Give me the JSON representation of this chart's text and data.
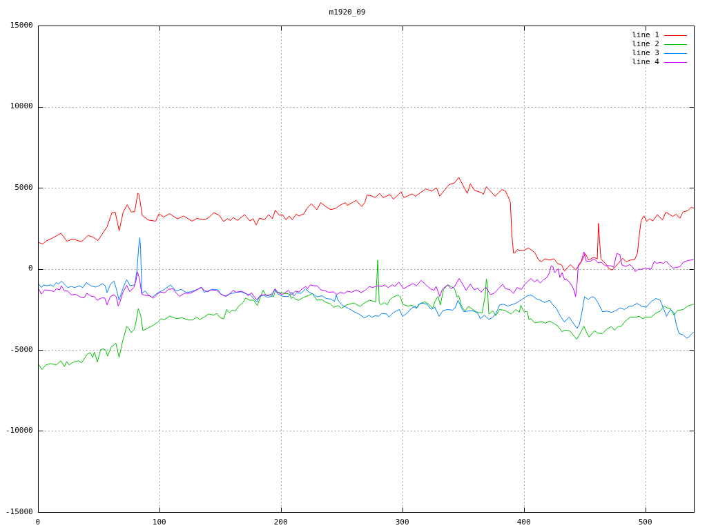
{
  "chart_data": {
    "type": "line",
    "title": "m1920_09",
    "xlim": [
      0,
      540
    ],
    "xticks": [
      0,
      100,
      200,
      300,
      400,
      500
    ],
    "ylim": [
      -15000,
      15000
    ],
    "yticks": [
      -15000,
      -10000,
      -5000,
      0,
      5000,
      10000,
      15000
    ],
    "grid": true,
    "legend": "top right",
    "series": [
      {
        "name": "line 1",
        "color": "#ff0000",
        "x": [
          1,
          4,
          7,
          11,
          19,
          24,
          28.5,
          36,
          41.5,
          45.6,
          49.4,
          57,
          61,
          63.7,
          67,
          70.3,
          73.6,
          77,
          79.8,
          82.3,
          83.3,
          86,
          91,
          97,
          99.8,
          103.6,
          108.4,
          115,
          120,
          127,
          131,
          137,
          140.7,
          144.9,
          149.3,
          153,
          156,
          158.5,
          160.7,
          164.5,
          170.2,
          174.6,
          177.2,
          179.7,
          182.5,
          186.4,
          190.1,
          193,
          195.5,
          198.7,
          201.5,
          204.4,
          206.9,
          209.5,
          212.6,
          214.9,
          219.2,
          221.5,
          225.3,
          229.7,
          232.9,
          237.7,
          241.1,
          245.3,
          249.1,
          253.3,
          254.8,
          262,
          266.6,
          269.1,
          271,
          274.8,
          277.6,
          281.4,
          284.2,
          289.9,
          292.8,
          299,
          301.3,
          308,
          310.8,
          319.4,
          324.1,
          328.2,
          330.8,
          334.5,
          338.3,
          343.1,
          346.5,
          350.3,
          353.5,
          356,
          359.2,
          365.8,
          366.7,
          369.2,
          372.5,
          376.3,
          382,
          384.9,
          387.7,
          389,
          390.2,
          391.5,
          392.8,
          394.6,
          399.4,
          403.7,
          406.8,
          409.1,
          412.3,
          414.5,
          417.3,
          421.2,
          424.9,
          427.8,
          431.2,
          433.5,
          438.3,
          442.6,
          446.7,
          450.6,
          453.4,
          457.7,
          460.5,
          461.5,
          462.3,
          463.5,
          467.3,
          470.1,
          472.9,
          477.7,
          481.5,
          484.3,
          487.8,
          491.3,
          493.6,
          495.1,
          496.6,
          498.9,
          501.1,
          503.6,
          506.1,
          509.9,
          514.1,
          516.9,
          519.8,
          522.6,
          525.5,
          528.3,
          531.2,
          535,
          537.8,
          539.7
        ],
        "values": [
          1620,
          1530,
          1720,
          1850,
          2190,
          1700,
          1840,
          1670,
          2060,
          1950,
          1740,
          2590,
          3460,
          3500,
          2350,
          3500,
          3950,
          3500,
          3530,
          4660,
          4600,
          3290,
          3010,
          2940,
          3390,
          3190,
          3400,
          3080,
          3260,
          2940,
          3110,
          3020,
          3160,
          3470,
          3300,
          2920,
          3090,
          2980,
          3160,
          2990,
          3340,
          2950,
          3090,
          2710,
          3130,
          3020,
          3340,
          3090,
          3610,
          3300,
          3330,
          3020,
          3260,
          3020,
          3370,
          3260,
          3400,
          3730,
          4010,
          3650,
          4080,
          3800,
          3650,
          3730,
          3940,
          4080,
          3910,
          4220,
          3840,
          4080,
          4550,
          4500,
          4390,
          4650,
          4390,
          4580,
          4290,
          4750,
          4390,
          4620,
          4480,
          4930,
          4790,
          5000,
          4480,
          4820,
          5180,
          5310,
          5640,
          5100,
          4650,
          5240,
          4860,
          4670,
          4580,
          5070,
          4790,
          4480,
          4890,
          4790,
          4360,
          4080,
          2100,
          970,
          990,
          1180,
          1110,
          1280,
          1130,
          990,
          540,
          430,
          610,
          540,
          610,
          330,
          230,
          -140,
          260,
          -60,
          330,
          940,
          540,
          710,
          610,
          2810,
          1810,
          610,
          330,
          0,
          -70,
          330,
          650,
          430,
          540,
          570,
          990,
          2100,
          2980,
          3260,
          2920,
          3090,
          2950,
          3340,
          3020,
          3490,
          3370,
          3230,
          3370,
          3120,
          3510,
          3580,
          3800,
          3750
        ]
      },
      {
        "name": "line 2",
        "color": "#00c000",
        "x": [
          1,
          3.4,
          6.7,
          10.5,
          15.2,
          19,
          21.9,
          23.8,
          25.7,
          29.5,
          33.3,
          36.1,
          40.9,
          43.3,
          45.2,
          46.6,
          49,
          51.7,
          54.2,
          56.1,
          57.4,
          60.5,
          64.3,
          66.9,
          70,
          73.2,
          74.5,
          77,
          79.5,
          80.8,
          82.7,
          84.6,
          86.5,
          91.3,
          95,
          98.9,
          101.7,
          103.6,
          108.4,
          114,
          118.8,
          123.6,
          127.4,
          130.8,
          133.1,
          136.9,
          140.7,
          144.9,
          147.3,
          149.8,
          153,
          155.5,
          157.8,
          159.7,
          162.6,
          165.4,
          168.9,
          171.1,
          174.6,
          177.8,
          180.7,
          182.9,
          185.4,
          188.2,
          191.1,
          194,
          195.5,
          197.8,
          203.5,
          207.3,
          208.8,
          210,
          212,
          214.5,
          218.7,
          222.5,
          225.9,
          229.7,
          233.9,
          237.3,
          240.6,
          243.8,
          247.2,
          250,
          253.9,
          260.1,
          265.3,
          268.1,
          272.8,
          276.7,
          278.1,
          279.1,
          279.8,
          280.4,
          281,
          282.3,
          285.2,
          287.6,
          289.9,
          292.8,
          296.6,
          298.5,
          300.3,
          304.2,
          308,
          311.7,
          314.6,
          318.4,
          321.8,
          325,
          326.9,
          329.4,
          331.3,
          334,
          337.4,
          340.2,
          343.1,
          345,
          346.5,
          348.7,
          351.6,
          354.4,
          356.3,
          359.2,
          362.1,
          365.8,
          368.3,
          369.2,
          370,
          371.2,
          373.1,
          374.4,
          376.9,
          380.1,
          384.9,
          389.6,
          393.4,
          396.3,
          397.6,
          399.7,
          402.9,
          404.3,
          405.9,
          408.7,
          412.6,
          415.4,
          417.7,
          421.1,
          424.5,
          428.2,
          431.4,
          434.3,
          438.2,
          441,
          443.5,
          446.1,
          449.5,
          451.4,
          453.7,
          458.1,
          461,
          464.7,
          468.5,
          472.3,
          474.6,
          478,
          480,
          483.7,
          487.5,
          491.3,
          495.1,
          498,
          500.8,
          504.6,
          508.4,
          512.2,
          515.6,
          517.9,
          520.7,
          523.6,
          526.4,
          531.2,
          535,
          539.7
        ],
        "values": [
          -5930,
          -6210,
          -5930,
          -5850,
          -5930,
          -5680,
          -6030,
          -5720,
          -5930,
          -5750,
          -5680,
          -5790,
          -5250,
          -5180,
          -5470,
          -5140,
          -5750,
          -5000,
          -4940,
          -5040,
          -5390,
          -4830,
          -4590,
          -5470,
          -4410,
          -3560,
          -3630,
          -3950,
          -3700,
          -3280,
          -2460,
          -2850,
          -3810,
          -3630,
          -3490,
          -3280,
          -3070,
          -3160,
          -2920,
          -3070,
          -3020,
          -3160,
          -3160,
          -2970,
          -3140,
          -2980,
          -2790,
          -2860,
          -2750,
          -3000,
          -3090,
          -2510,
          -2720,
          -2550,
          -2610,
          -2300,
          -2080,
          -1800,
          -1940,
          -1940,
          -2270,
          -1800,
          -1330,
          -1660,
          -1590,
          -1730,
          -1330,
          -1450,
          -1520,
          -1560,
          -1840,
          -1730,
          -1870,
          -1940,
          -1770,
          -1660,
          -1520,
          -1940,
          -1900,
          -2080,
          -2150,
          -2370,
          -2270,
          -2440,
          -2230,
          -2110,
          -2320,
          -2150,
          -1940,
          -2010,
          -2040,
          -600,
          540,
          -670,
          -2080,
          -2230,
          -2080,
          -2230,
          -1900,
          -1730,
          -1620,
          -1730,
          -2180,
          -2300,
          -2250,
          -2440,
          -2150,
          -2040,
          -2180,
          -2440,
          -2010,
          -1700,
          -2230,
          -1280,
          -990,
          -1090,
          -1230,
          -1730,
          -1660,
          -2300,
          -2610,
          -2320,
          -2410,
          -2580,
          -2690,
          -2720,
          -1590,
          -630,
          -990,
          -2790,
          -2690,
          -2580,
          -2890,
          -2510,
          -2580,
          -2790,
          -2510,
          -2690,
          -2250,
          -2610,
          -2650,
          -3150,
          -3080,
          -3320,
          -3290,
          -3260,
          -3360,
          -3220,
          -3360,
          -3540,
          -3880,
          -3780,
          -3850,
          -4110,
          -4350,
          -4020,
          -3540,
          -3880,
          -4210,
          -3830,
          -3970,
          -4000,
          -3710,
          -3570,
          -3780,
          -3540,
          -3570,
          -3220,
          -2980,
          -3000,
          -2930,
          -3080,
          -2980,
          -3000,
          -2750,
          -2610,
          -2300,
          -2410,
          -2440,
          -2860,
          -2580,
          -2510,
          -2300,
          -2180
        ]
      },
      {
        "name": "line 3",
        "color": "#0080ff",
        "x": [
          1,
          2.9,
          4.8,
          7.6,
          10.5,
          12.9,
          15.2,
          17.1,
          19.4,
          21.9,
          24.7,
          27.6,
          30.4,
          34.2,
          37.1,
          39.9,
          43.7,
          47.5,
          50.4,
          53.2,
          55.5,
          57,
          59.9,
          62.7,
          64.6,
          66.9,
          70.3,
          73.2,
          76,
          79.8,
          81.7,
          83.1,
          84,
          84.6,
          85.6,
          88.4,
          91.3,
          94.1,
          97,
          99.8,
          103.6,
          109.3,
          113.7,
          117.9,
          122.6,
          126.4,
          131.2,
          135,
          136.9,
          139.8,
          143.6,
          148.3,
          150.2,
          154,
          157.8,
          163.5,
          167.3,
          172.1,
          174.9,
          177.2,
          180.3,
          182.5,
          185.4,
          189.2,
          192.4,
          194.9,
          197.8,
          201.5,
          206.3,
          209.1,
          211,
          213.3,
          216.7,
          220.5,
          222.8,
          227.2,
          230,
          233.8,
          237.6,
          241.4,
          244.2,
          245.6,
          247.1,
          250.9,
          255.7,
          260.4,
          264.2,
          268.9,
          272.8,
          275.2,
          277.5,
          280.4,
          283.3,
          287.1,
          289,
          292.8,
          297.5,
          300.3,
          304.2,
          307.4,
          310.8,
          311.7,
          313.6,
          316.5,
          320.3,
          323.7,
          326.9,
          330.2,
          333.5,
          337.4,
          341.2,
          343.5,
          345.9,
          348.7,
          350.6,
          354,
          358.2,
          362.1,
          364.3,
          367.7,
          371.2,
          374.4,
          377.3,
          380.1,
          383,
          386.8,
          393.4,
          398.2,
          402.9,
          405.9,
          407.8,
          410.1,
          413.5,
          417.3,
          421.1,
          424,
          426.8,
          430.2,
          433.5,
          437.3,
          440.1,
          443.9,
          445.8,
          448.1,
          450,
          453.1,
          455.7,
          458.1,
          461,
          464.8,
          468.5,
          472.3,
          475.8,
          479,
          482.8,
          486.6,
          489.5,
          493.2,
          496.7,
          500.8,
          504.6,
          508.8,
          512.2,
          515,
          517.5,
          520.7,
          523.6,
          525.5,
          527.8,
          531.2,
          534,
          535.9,
          538.4,
          539.7
        ],
        "values": [
          -950,
          -1160,
          -990,
          -1050,
          -990,
          -1090,
          -850,
          -950,
          -760,
          -950,
          -1160,
          -1090,
          -1160,
          -1050,
          -1160,
          -850,
          -1050,
          -1130,
          -1050,
          -910,
          -1050,
          -1470,
          -950,
          -760,
          -1230,
          -1940,
          -1160,
          -670,
          -1050,
          -990,
          -30,
          1390,
          1920,
          1240,
          -1510,
          -1370,
          -1650,
          -1750,
          -1580,
          -1440,
          -1300,
          -990,
          -1370,
          -1270,
          -1470,
          -1410,
          -1270,
          -1160,
          -1450,
          -1380,
          -1260,
          -1300,
          -1520,
          -1690,
          -1550,
          -1450,
          -1420,
          -1560,
          -1590,
          -1800,
          -2040,
          -1730,
          -1620,
          -1760,
          -1700,
          -1280,
          -1560,
          -1700,
          -1700,
          -1450,
          -1660,
          -1470,
          -1520,
          -1230,
          -1420,
          -1590,
          -1730,
          -1660,
          -1840,
          -1870,
          -2010,
          -1620,
          -1940,
          -2270,
          -2440,
          -2650,
          -2790,
          -3030,
          -2860,
          -3000,
          -2890,
          -2930,
          -2750,
          -2790,
          -2980,
          -2690,
          -2510,
          -2930,
          -2720,
          -2440,
          -2300,
          -2440,
          -2180,
          -2130,
          -2180,
          -2510,
          -2370,
          -2930,
          -2580,
          -2510,
          -2550,
          -2410,
          -1940,
          -2410,
          -2650,
          -2610,
          -2580,
          -2750,
          -3080,
          -2860,
          -3120,
          -3000,
          -2720,
          -2230,
          -2180,
          -2300,
          -2130,
          -1900,
          -1660,
          -1620,
          -1700,
          -1840,
          -1940,
          -2080,
          -1940,
          -2230,
          -2440,
          -2930,
          -3290,
          -2980,
          -3290,
          -3680,
          -3430,
          -2580,
          -1730,
          -1900,
          -1730,
          -1760,
          -2080,
          -2650,
          -2610,
          -2690,
          -2580,
          -2410,
          -2510,
          -2320,
          -2300,
          -2130,
          -2300,
          -2370,
          -2040,
          -1830,
          -1940,
          -2440,
          -2930,
          -2510,
          -2720,
          -3430,
          -4000,
          -4070,
          -4280,
          -4210,
          -4000,
          -3920
        ]
      },
      {
        "name": "line 4",
        "color": "#c000ff",
        "x": [
          1,
          2.9,
          5.7,
          10.5,
          13.3,
          15.2,
          18.1,
          19.4,
          21.9,
          24.7,
          27.6,
          31.4,
          35.2,
          38,
          40.3,
          43.7,
          46.6,
          49,
          52.3,
          55.1,
          57,
          59.9,
          62.7,
          64.6,
          66.2,
          67.5,
          70.3,
          73.2,
          75.7,
          78.9,
          80.8,
          82.1,
          83.7,
          85.6,
          89.4,
          92.2,
          95.1,
          97.9,
          100.8,
          104.6,
          107.4,
          111.2,
          114.1,
          116.9,
          120.7,
          125.5,
          130.2,
          134.6,
          136.9,
          139.8,
          142.6,
          147.3,
          151.2,
          155,
          157.8,
          160.7,
          163.5,
          167.3,
          170.2,
          173,
          175.9,
          177.8,
          180.3,
          182.9,
          186.4,
          190.1,
          193,
          195.5,
          197.4,
          201.5,
          206.3,
          209.1,
          212,
          214.9,
          217.7,
          220.5,
          222,
          224.3,
          227.2,
          230,
          232.9,
          235.7,
          239.5,
          243.3,
          246.1,
          249,
          252.4,
          254.8,
          258.5,
          262.3,
          266.1,
          269.9,
          272.8,
          275.6,
          279.1,
          283.3,
          285.2,
          288.4,
          291.8,
          294.1,
          297.1,
          301.3,
          304.2,
          308.9,
          311.7,
          315.5,
          319.4,
          323.1,
          326,
          327.9,
          330.8,
          333.2,
          337.4,
          340.2,
          343.1,
          346.8,
          349.7,
          352.5,
          356,
          359.2,
          362.1,
          364.9,
          368.7,
          372.5,
          375.4,
          379.2,
          382.6,
          384.9,
          388.3,
          391.5,
          394.4,
          398.2,
          400.5,
          402.9,
          405.9,
          408.7,
          411.2,
          413.5,
          416.3,
          419.2,
          421.1,
          422.6,
          424,
          425.3,
          428.3,
          429.7,
          431.6,
          433.5,
          436.3,
          439.2,
          441.7,
          442.6,
          443.9,
          444.8,
          447.3,
          449.5,
          451.4,
          454.8,
          458.1,
          461,
          463.8,
          467.1,
          471.4,
          473.9,
          476.5,
          479,
          480.9,
          484.1,
          487.2,
          489.5,
          491.8,
          494.3,
          497.1,
          500,
          504.7,
          507.5,
          509.4,
          512.3,
          515.1,
          517,
          519.9,
          522.7,
          525.5,
          528.4,
          531.2,
          535,
          539.7
        ],
        "values": [
          -1270,
          -1560,
          -1300,
          -1330,
          -1410,
          -1230,
          -1300,
          -1050,
          -1370,
          -1370,
          -1610,
          -1580,
          -1750,
          -1800,
          -1510,
          -1680,
          -1720,
          -1940,
          -1800,
          -1800,
          -2220,
          -1700,
          -1610,
          -1720,
          -2290,
          -2080,
          -1410,
          -1020,
          -1410,
          -1160,
          -740,
          -200,
          -600,
          -1580,
          -1650,
          -1650,
          -1820,
          -1580,
          -1440,
          -1470,
          -1270,
          -1230,
          -1510,
          -1700,
          -1510,
          -1510,
          -1330,
          -1130,
          -1330,
          -1420,
          -1300,
          -1330,
          -1590,
          -1700,
          -1560,
          -1330,
          -1450,
          -1380,
          -1470,
          -1660,
          -1470,
          -1700,
          -1900,
          -1660,
          -1590,
          -1660,
          -1520,
          -1230,
          -1470,
          -1590,
          -1330,
          -1590,
          -1380,
          -1420,
          -1230,
          -1090,
          -1230,
          -990,
          -1050,
          -1050,
          -1300,
          -1330,
          -1450,
          -1420,
          -1590,
          -1450,
          -1520,
          -1380,
          -1450,
          -1300,
          -1470,
          -1300,
          -1090,
          -1160,
          -1050,
          -1090,
          -990,
          -1160,
          -990,
          -1090,
          -810,
          -1230,
          -1090,
          -910,
          -1050,
          -710,
          -990,
          -1230,
          -1330,
          -1090,
          -1700,
          -1230,
          -990,
          -1230,
          -1090,
          -600,
          -950,
          -1330,
          -950,
          -1300,
          -1190,
          -1450,
          -1130,
          -1590,
          -1520,
          -1230,
          -950,
          -1230,
          -1280,
          -1520,
          -1160,
          -1280,
          -990,
          -810,
          -600,
          -810,
          -670,
          -880,
          -670,
          -530,
          -240,
          190,
          140,
          -240,
          0,
          -530,
          -240,
          -670,
          -710,
          -990,
          -1380,
          -1730,
          -880,
          230,
          470,
          1040,
          470,
          470,
          610,
          370,
          400,
          190,
          190,
          90,
          940,
          890,
          230,
          140,
          260,
          120,
          -170,
          -30,
          -30,
          40,
          -30,
          470,
          330,
          400,
          330,
          470,
          260,
          40,
          90,
          120,
          400,
          510,
          570
        ]
      }
    ]
  }
}
